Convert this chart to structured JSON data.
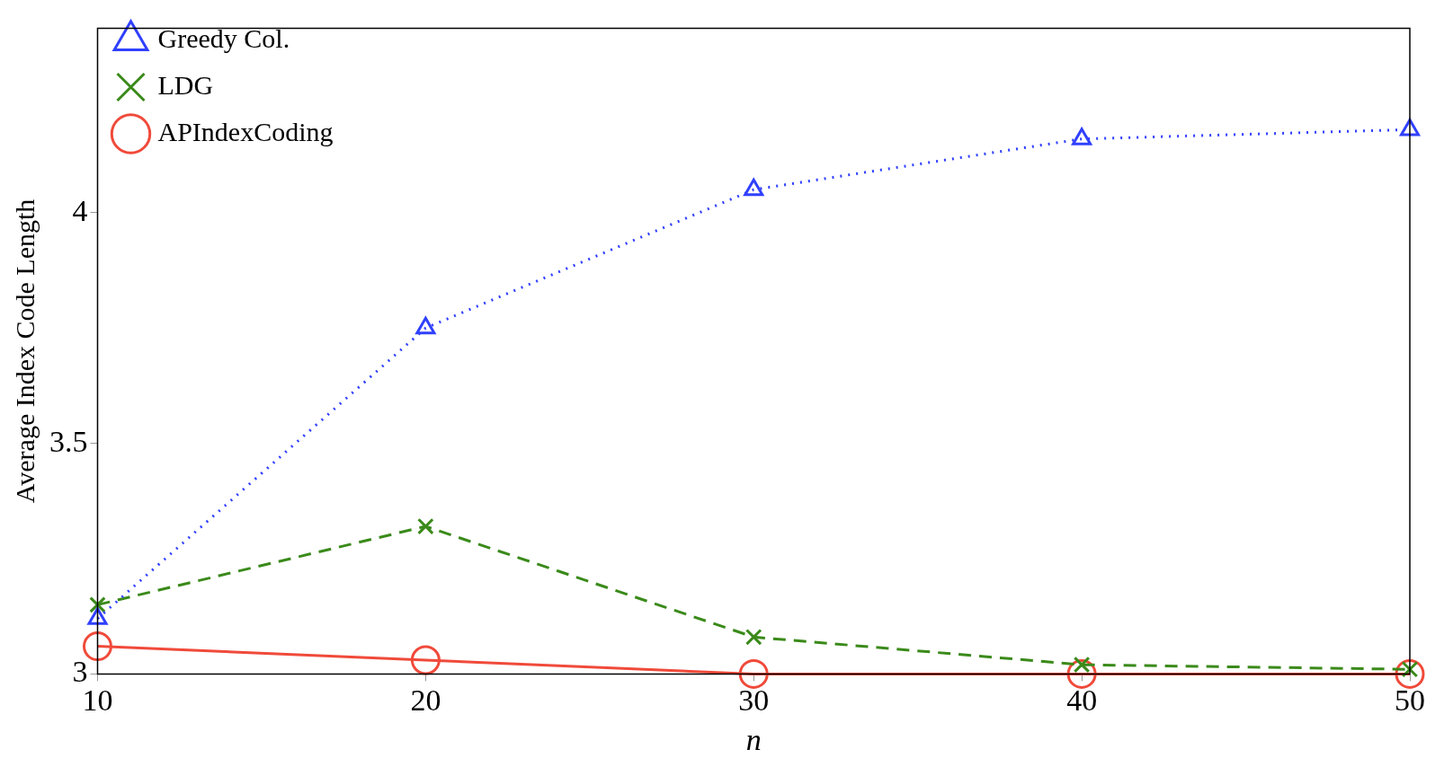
{
  "chart_data": {
    "type": "line",
    "xlabel": "n",
    "ylabel": "Average Index Code Length",
    "x": [
      10,
      20,
      30,
      40,
      50
    ],
    "xlim": [
      10,
      50
    ],
    "xticks": [
      10,
      20,
      30,
      40,
      50
    ],
    "ylim": [
      3,
      4.4
    ],
    "yticks": [
      3,
      3.5,
      4
    ],
    "grid": false,
    "legend": "top left",
    "series": [
      {
        "name": "Greedy Col.",
        "color": "#3040ff",
        "marker": "triangle",
        "line_style": "dotted",
        "values": [
          3.12,
          3.75,
          4.05,
          4.16,
          4.18
        ]
      },
      {
        "name": "LDG",
        "color": "#3a8a1a",
        "marker": "cross",
        "line_style": "dashed",
        "values": [
          3.15,
          3.32,
          3.08,
          3.02,
          3.01
        ]
      },
      {
        "name": "APIndexCoding",
        "color": "#f04a3a",
        "marker": "circle",
        "line_style": "solid",
        "values": [
          3.06,
          3.03,
          3.0,
          3.0,
          3.0
        ]
      }
    ]
  }
}
